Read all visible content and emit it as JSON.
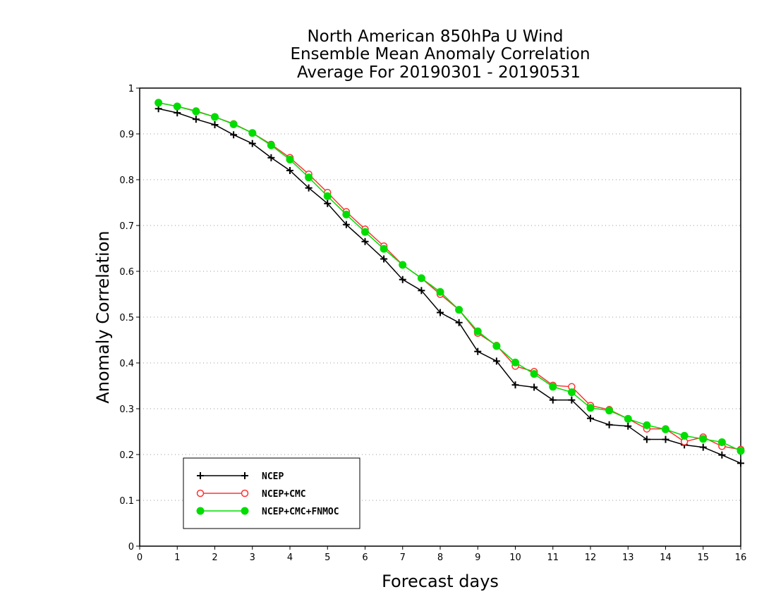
{
  "chart_data": {
    "type": "line",
    "title_lines": [
      "North American 850hPa U Wind",
      "Ensemble Mean Anomaly Correlation",
      "Average For 20190301 - 20190531"
    ],
    "xlabel": "Forecast days",
    "ylabel": "Anomaly Correlation",
    "xlim": [
      0,
      16
    ],
    "ylim": [
      0,
      1
    ],
    "x_ticks": [
      "0",
      "1",
      "2",
      "3",
      "4",
      "5",
      "6",
      "7",
      "8",
      "9",
      "10",
      "11",
      "12",
      "13",
      "14",
      "15",
      "16"
    ],
    "y_ticks": [
      "0",
      "0.1",
      "0.2",
      "0.3",
      "0.4",
      "0.5",
      "0.6",
      "0.7",
      "0.8",
      "0.9",
      "1"
    ],
    "grid": "horizontal dotted",
    "legend_position": "bottom-left",
    "x": [
      0.5,
      1,
      1.5,
      2,
      2.5,
      3,
      3.5,
      4,
      4.5,
      5,
      5.5,
      6,
      6.5,
      7,
      7.5,
      8,
      8.5,
      9,
      9.5,
      10,
      10.5,
      11,
      11.5,
      12,
      12.5,
      13,
      13.5,
      14,
      14.5,
      15,
      15.5,
      16
    ],
    "series": [
      {
        "name": "NCEP",
        "color": "#000000",
        "marker": "plus",
        "values": [
          0.955,
          0.946,
          0.932,
          0.92,
          0.898,
          0.879,
          0.848,
          0.82,
          0.782,
          0.748,
          0.702,
          0.665,
          0.627,
          0.582,
          0.558,
          0.51,
          0.488,
          0.425,
          0.404,
          0.352,
          0.347,
          0.319,
          0.319,
          0.279,
          0.265,
          0.262,
          0.233,
          0.233,
          0.221,
          0.216,
          0.199,
          0.181
        ]
      },
      {
        "name": "NCEP+CMC",
        "color": "#ff3333",
        "marker": "open-circle",
        "values": [
          0.968,
          0.96,
          0.95,
          0.937,
          0.922,
          0.902,
          0.877,
          0.848,
          0.812,
          0.772,
          0.73,
          0.692,
          0.655,
          0.614,
          0.585,
          0.55,
          0.516,
          0.465,
          0.438,
          0.393,
          0.381,
          0.351,
          0.348,
          0.307,
          0.298,
          0.278,
          0.256,
          0.256,
          0.228,
          0.238,
          0.218,
          0.211
        ]
      },
      {
        "name": "NCEP+CMC+FNMOC",
        "color": "#00dd00",
        "marker": "filled-circle",
        "values": [
          0.968,
          0.96,
          0.949,
          0.937,
          0.921,
          0.902,
          0.875,
          0.844,
          0.805,
          0.764,
          0.724,
          0.686,
          0.649,
          0.614,
          0.585,
          0.555,
          0.516,
          0.469,
          0.437,
          0.401,
          0.376,
          0.348,
          0.336,
          0.302,
          0.296,
          0.278,
          0.264,
          0.255,
          0.241,
          0.234,
          0.227,
          0.208
        ]
      }
    ]
  }
}
